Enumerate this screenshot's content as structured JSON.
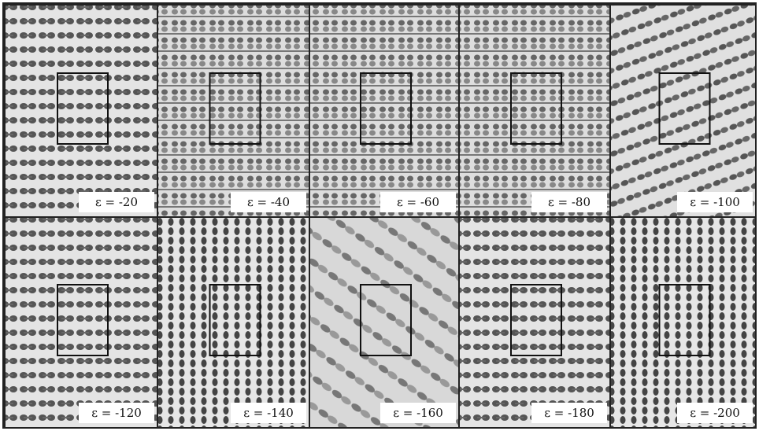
{
  "panels": [
    {
      "label": "ε = -20"
    },
    {
      "label": "ε = -40"
    },
    {
      "label": "ε = -60"
    },
    {
      "label": "ε = -80"
    },
    {
      "label": "ε = -100"
    },
    {
      "label": "ε = -120"
    },
    {
      "label": "ε = -140"
    },
    {
      "label": "ε = -160"
    },
    {
      "label": "ε = -180"
    },
    {
      "label": "ε = -200"
    }
  ]
}
